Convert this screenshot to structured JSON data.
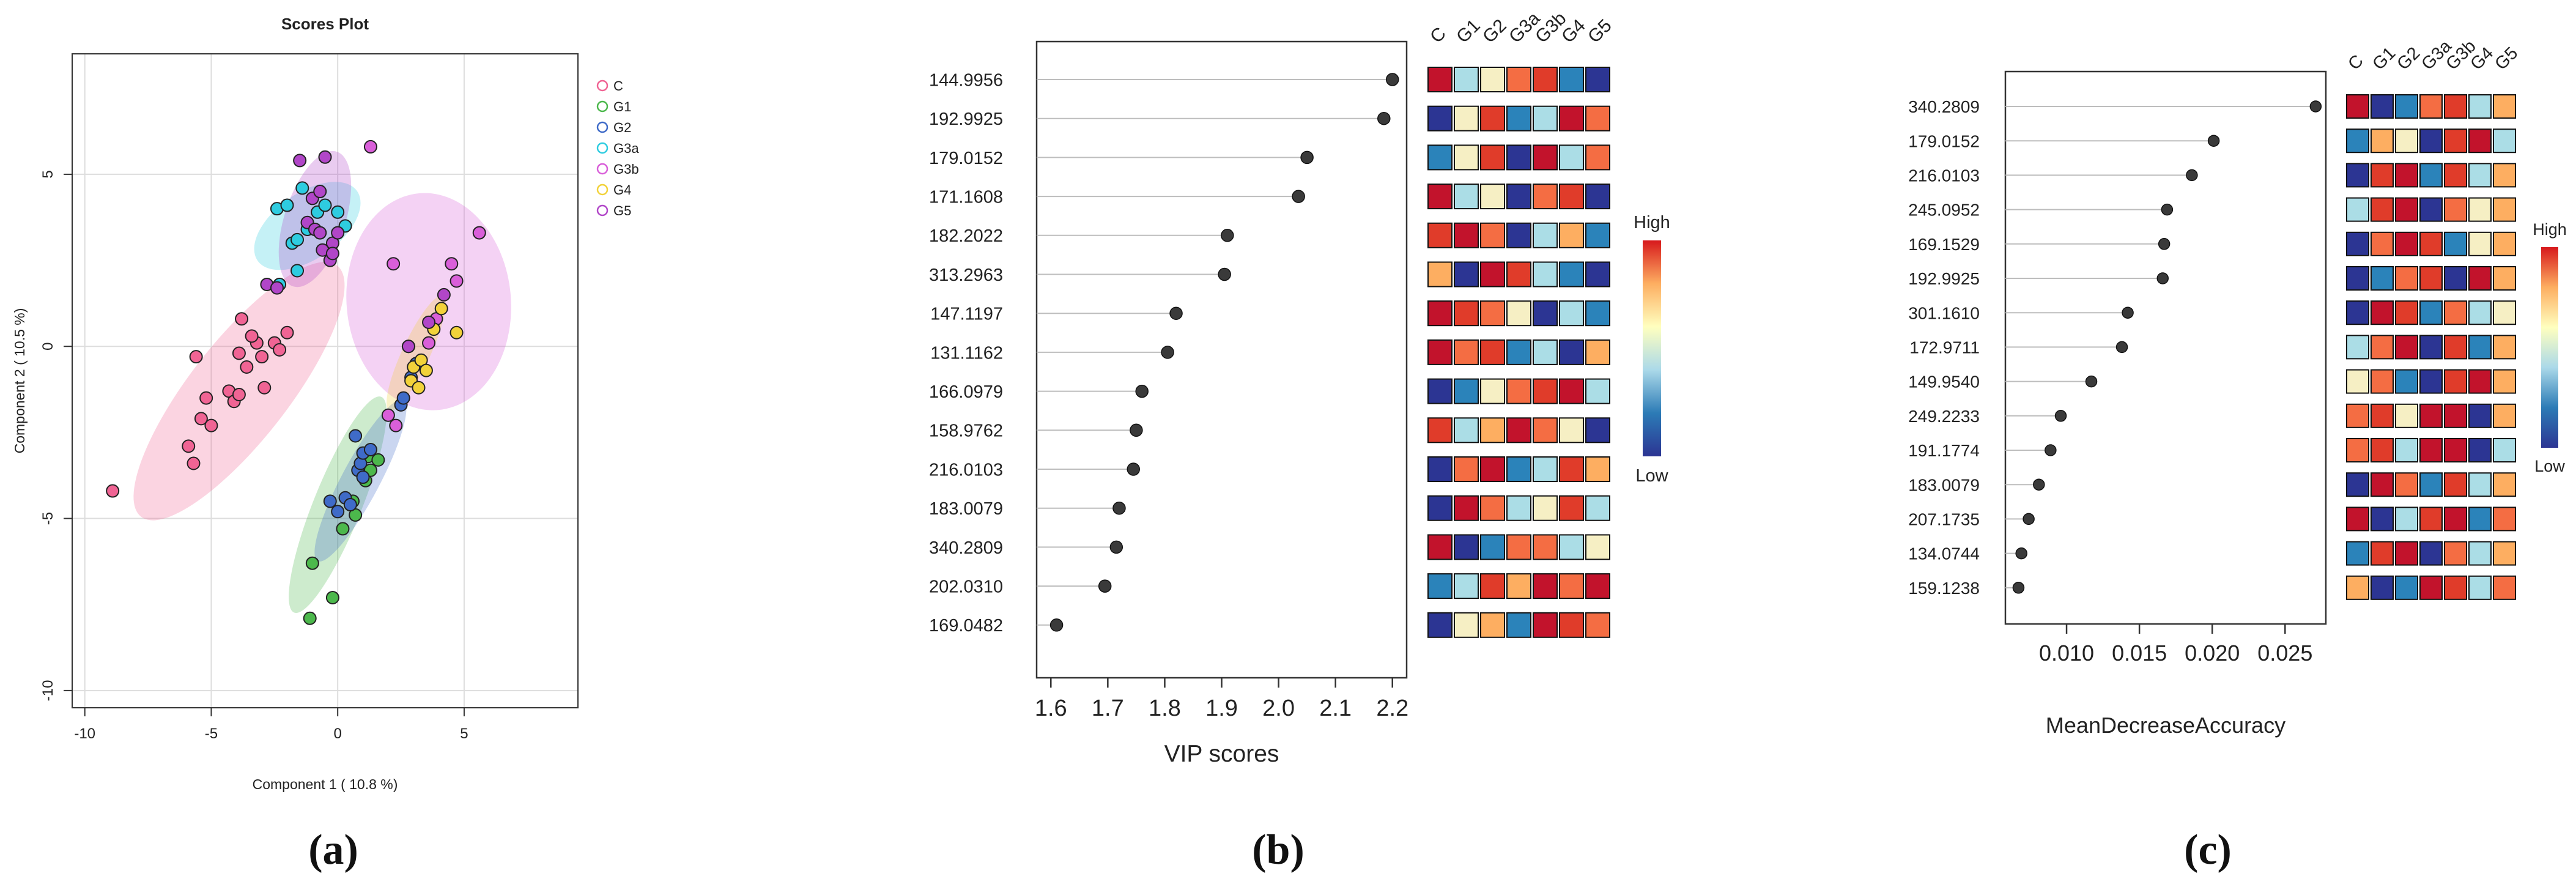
{
  "chart_data": [
    {
      "id": "scores",
      "type": "scatter",
      "title": "Scores Plot",
      "xlabel": "Component 1 ( 10.8 %)",
      "ylabel": "Component 2 ( 10.5 %)",
      "xlim": [
        -10.5,
        9.5
      ],
      "ylim": [
        -10.5,
        8.5
      ],
      "xticks": [
        -10,
        -5,
        0,
        5
      ],
      "yticks": [
        -10,
        -5,
        0,
        5
      ],
      "caption": "(a)",
      "legend_position": "right",
      "series": [
        {
          "name": "C",
          "color": "#F06494",
          "ellipse": {
            "cx": -3.9,
            "cy": -1.3,
            "rx": 6.3,
            "ry": 1.95,
            "angle": 52
          },
          "points": [
            [
              -8.9,
              -4.2
            ],
            [
              -5.7,
              -3.4
            ],
            [
              -5.9,
              -2.9
            ],
            [
              -5.4,
              -2.1
            ],
            [
              -5.0,
              -2.3
            ],
            [
              -5.2,
              -1.5
            ],
            [
              -4.3,
              -1.3
            ],
            [
              -4.1,
              -1.6
            ],
            [
              -3.9,
              -0.2
            ],
            [
              -3.8,
              0.8
            ],
            [
              -3.6,
              -0.6
            ],
            [
              -3.2,
              0.1
            ],
            [
              -3.0,
              -0.3
            ],
            [
              -2.9,
              -1.2
            ],
            [
              -2.5,
              0.1
            ],
            [
              -2.3,
              -0.1
            ],
            [
              -2.0,
              0.4
            ],
            [
              -3.9,
              -1.4
            ],
            [
              -5.6,
              -0.3
            ],
            [
              -3.4,
              0.3
            ]
          ]
        },
        {
          "name": "G1",
          "color": "#4CB84C",
          "ellipse": {
            "cx": 0.0,
            "cy": -4.6,
            "rx": 4.6,
            "ry": 0.95,
            "angle": 68
          },
          "points": [
            [
              -1.1,
              -7.9
            ],
            [
              -0.2,
              -7.3
            ],
            [
              -1.0,
              -6.3
            ],
            [
              0.2,
              -5.3
            ],
            [
              0.6,
              -4.5
            ],
            [
              1.1,
              -3.9
            ],
            [
              1.2,
              -3.2
            ],
            [
              1.6,
              -3.3
            ],
            [
              0.7,
              -4.9
            ],
            [
              1.3,
              -3.6
            ]
          ]
        },
        {
          "name": "G2",
          "color": "#3F6BC8",
          "ellipse": {
            "cx": 0.9,
            "cy": -3.9,
            "rx": 3.6,
            "ry": 0.75,
            "angle": 62
          },
          "points": [
            [
              -0.3,
              -4.5
            ],
            [
              0.0,
              -4.8
            ],
            [
              0.3,
              -4.4
            ],
            [
              0.5,
              -4.6
            ],
            [
              0.8,
              -3.6
            ],
            [
              0.9,
              -3.4
            ],
            [
              1.0,
              -3.1
            ],
            [
              0.7,
              -2.6
            ],
            [
              1.3,
              -3.0
            ],
            [
              1.0,
              -3.8
            ],
            [
              2.5,
              -1.7
            ],
            [
              2.6,
              -1.5
            ],
            [
              2.9,
              -0.9
            ],
            [
              3.1,
              -0.5
            ]
          ]
        },
        {
          "name": "G3a",
          "color": "#2ECCE0",
          "ellipse": {
            "cx": -1.2,
            "cy": 3.5,
            "rx": 2.4,
            "ry": 1.3,
            "angle": 35
          },
          "points": [
            [
              -2.4,
              4.0
            ],
            [
              -2.0,
              4.1
            ],
            [
              -1.8,
              3.0
            ],
            [
              -1.6,
              3.1
            ],
            [
              -1.2,
              3.4
            ],
            [
              -1.4,
              4.6
            ],
            [
              -0.8,
              3.9
            ],
            [
              -0.5,
              4.1
            ],
            [
              0.0,
              3.9
            ],
            [
              0.3,
              3.5
            ],
            [
              -1.6,
              2.2
            ],
            [
              -2.3,
              1.8
            ]
          ]
        },
        {
          "name": "G3b",
          "color": "#D95FD9",
          "ellipse": {
            "cx": 3.6,
            "cy": 1.3,
            "rx": 4.3,
            "ry": 3.25,
            "angle": 95
          },
          "points": [
            [
              1.3,
              5.8
            ],
            [
              2.2,
              2.4
            ],
            [
              4.5,
              2.4
            ],
            [
              4.7,
              1.9
            ],
            [
              5.6,
              3.3
            ],
            [
              3.9,
              0.8
            ],
            [
              3.6,
              0.1
            ],
            [
              2.0,
              -2.0
            ],
            [
              2.3,
              -2.3
            ]
          ]
        },
        {
          "name": "G4",
          "color": "#F2D23A",
          "ellipse": {
            "cx": 3.1,
            "cy": -0.2,
            "rx": 2.5,
            "ry": 0.55,
            "angle": 65
          },
          "points": [
            [
              2.8,
              0.0
            ],
            [
              3.0,
              -0.6
            ],
            [
              3.3,
              -0.4
            ],
            [
              3.5,
              -0.7
            ],
            [
              2.9,
              -1.0
            ],
            [
              3.2,
              -1.2
            ],
            [
              3.8,
              0.5
            ],
            [
              4.7,
              0.4
            ],
            [
              4.1,
              1.1
            ]
          ]
        },
        {
          "name": "G5",
          "color": "#B146C8",
          "ellipse": {
            "cx": -0.9,
            "cy": 3.7,
            "rx": 2.8,
            "ry": 1.2,
            "angle": 72
          },
          "points": [
            [
              -2.8,
              1.8
            ],
            [
              -2.4,
              1.7
            ],
            [
              -1.5,
              5.4
            ],
            [
              -1.0,
              4.3
            ],
            [
              -1.2,
              3.6
            ],
            [
              -0.9,
              3.4
            ],
            [
              -0.7,
              4.5
            ],
            [
              -0.5,
              5.5
            ],
            [
              -0.2,
              3.0
            ],
            [
              -0.6,
              2.8
            ],
            [
              -0.3,
              2.5
            ],
            [
              0.0,
              3.3
            ],
            [
              -0.2,
              2.7
            ],
            [
              -0.7,
              3.3
            ],
            [
              2.8,
              0.0
            ],
            [
              3.6,
              0.7
            ],
            [
              4.2,
              1.5
            ]
          ]
        }
      ]
    },
    {
      "id": "vip",
      "type": "dot",
      "xlabel": "VIP scores",
      "xlim": [
        1.575,
        2.225
      ],
      "xticks": [
        "1.6",
        "1.7",
        "1.8",
        "1.9",
        "2.0",
        "2.1",
        "2.2"
      ],
      "caption": "(b)",
      "groups": [
        "C",
        "G1",
        "G2",
        "G3a",
        "G3b",
        "G4",
        "G5"
      ],
      "legend": {
        "high": "High",
        "low": "Low"
      },
      "labels": [
        "144.9956",
        "192.9925",
        "179.0152",
        "171.1608",
        "182.2022",
        "313.2963",
        "147.1197",
        "131.1162",
        "166.0979",
        "158.9762",
        "216.0103",
        "183.0079",
        "340.2809",
        "202.0310",
        "169.0482"
      ],
      "values": [
        2.2,
        2.185,
        2.05,
        2.035,
        1.91,
        1.905,
        1.82,
        1.805,
        1.76,
        1.75,
        1.745,
        1.72,
        1.715,
        1.695,
        1.61
      ],
      "heat": [
        [
          7,
          2,
          3,
          5,
          6,
          1,
          0
        ],
        [
          0,
          3,
          6,
          1,
          2,
          7,
          5
        ],
        [
          1,
          3,
          6,
          0,
          7,
          2,
          5
        ],
        [
          7,
          2,
          3,
          0,
          5,
          6,
          0
        ],
        [
          6,
          7,
          5,
          0,
          2,
          4,
          1
        ],
        [
          4,
          0,
          7,
          6,
          2,
          1,
          0
        ],
        [
          7,
          6,
          5,
          3,
          0,
          2,
          1
        ],
        [
          7,
          5,
          6,
          1,
          2,
          0,
          4
        ],
        [
          0,
          1,
          3,
          5,
          6,
          7,
          2
        ],
        [
          6,
          2,
          4,
          7,
          5,
          3,
          0
        ],
        [
          0,
          5,
          7,
          1,
          2,
          6,
          4
        ],
        [
          0,
          7,
          5,
          2,
          3,
          6,
          2
        ],
        [
          7,
          0,
          1,
          5,
          5,
          2,
          3
        ],
        [
          1,
          2,
          6,
          4,
          7,
          5,
          7
        ],
        [
          0,
          3,
          4,
          1,
          7,
          6,
          5
        ]
      ]
    },
    {
      "id": "mda",
      "type": "dot",
      "xlabel": "MeanDecreaseAccuracy",
      "xlim": [
        0.0058,
        0.0278
      ],
      "xticks": [
        "0.010",
        "0.015",
        "0.020",
        "0.025"
      ],
      "caption": "(c)",
      "groups": [
        "C",
        "G1",
        "G2",
        "G3a",
        "G3b",
        "G4",
        "G5"
      ],
      "legend": {
        "high": "High",
        "low": "Low"
      },
      "labels": [
        "340.2809",
        "179.0152",
        "216.0103",
        "245.0952",
        "169.1529",
        "192.9925",
        "301.1610",
        "172.9711",
        "149.9540",
        "249.2233",
        "191.1774",
        "183.0079",
        "207.1735",
        "134.0744",
        "159.1238"
      ],
      "values": [
        0.0271,
        0.0201,
        0.0186,
        0.0169,
        0.0167,
        0.0166,
        0.0142,
        0.0138,
        0.0117,
        0.0096,
        0.0089,
        0.0081,
        0.0074,
        0.0069,
        0.0067
      ],
      "heat": [
        [
          7,
          0,
          1,
          5,
          6,
          2,
          4
        ],
        [
          1,
          4,
          3,
          0,
          6,
          7,
          2
        ],
        [
          0,
          6,
          7,
          1,
          6,
          2,
          4
        ],
        [
          2,
          6,
          7,
          0,
          5,
          3,
          4
        ],
        [
          0,
          5,
          7,
          6,
          1,
          3,
          4
        ],
        [
          0,
          1,
          5,
          6,
          0,
          7,
          4
        ],
        [
          0,
          7,
          6,
          1,
          5,
          2,
          3
        ],
        [
          2,
          5,
          7,
          0,
          6,
          1,
          4
        ],
        [
          3,
          5,
          1,
          0,
          6,
          7,
          4
        ],
        [
          5,
          6,
          3,
          7,
          7,
          0,
          4
        ],
        [
          5,
          6,
          2,
          7,
          7,
          0,
          2
        ],
        [
          0,
          7,
          5,
          1,
          6,
          2,
          4
        ],
        [
          7,
          0,
          2,
          6,
          7,
          1,
          5
        ],
        [
          1,
          6,
          7,
          0,
          5,
          2,
          4
        ],
        [
          4,
          0,
          1,
          7,
          6,
          2,
          5
        ]
      ]
    }
  ],
  "heat_colors": [
    "#2C3593",
    "#2B83BA",
    "#ABDDE6",
    "#F6EFC4",
    "#FDAE61",
    "#F46D43",
    "#E03C2A",
    "#C2132C"
  ],
  "gradient_stops": [
    "#D7191C",
    "#FDAE61",
    "#FFFFBF",
    "#ABD9E9",
    "#2C7BB6",
    "#2C3593"
  ]
}
